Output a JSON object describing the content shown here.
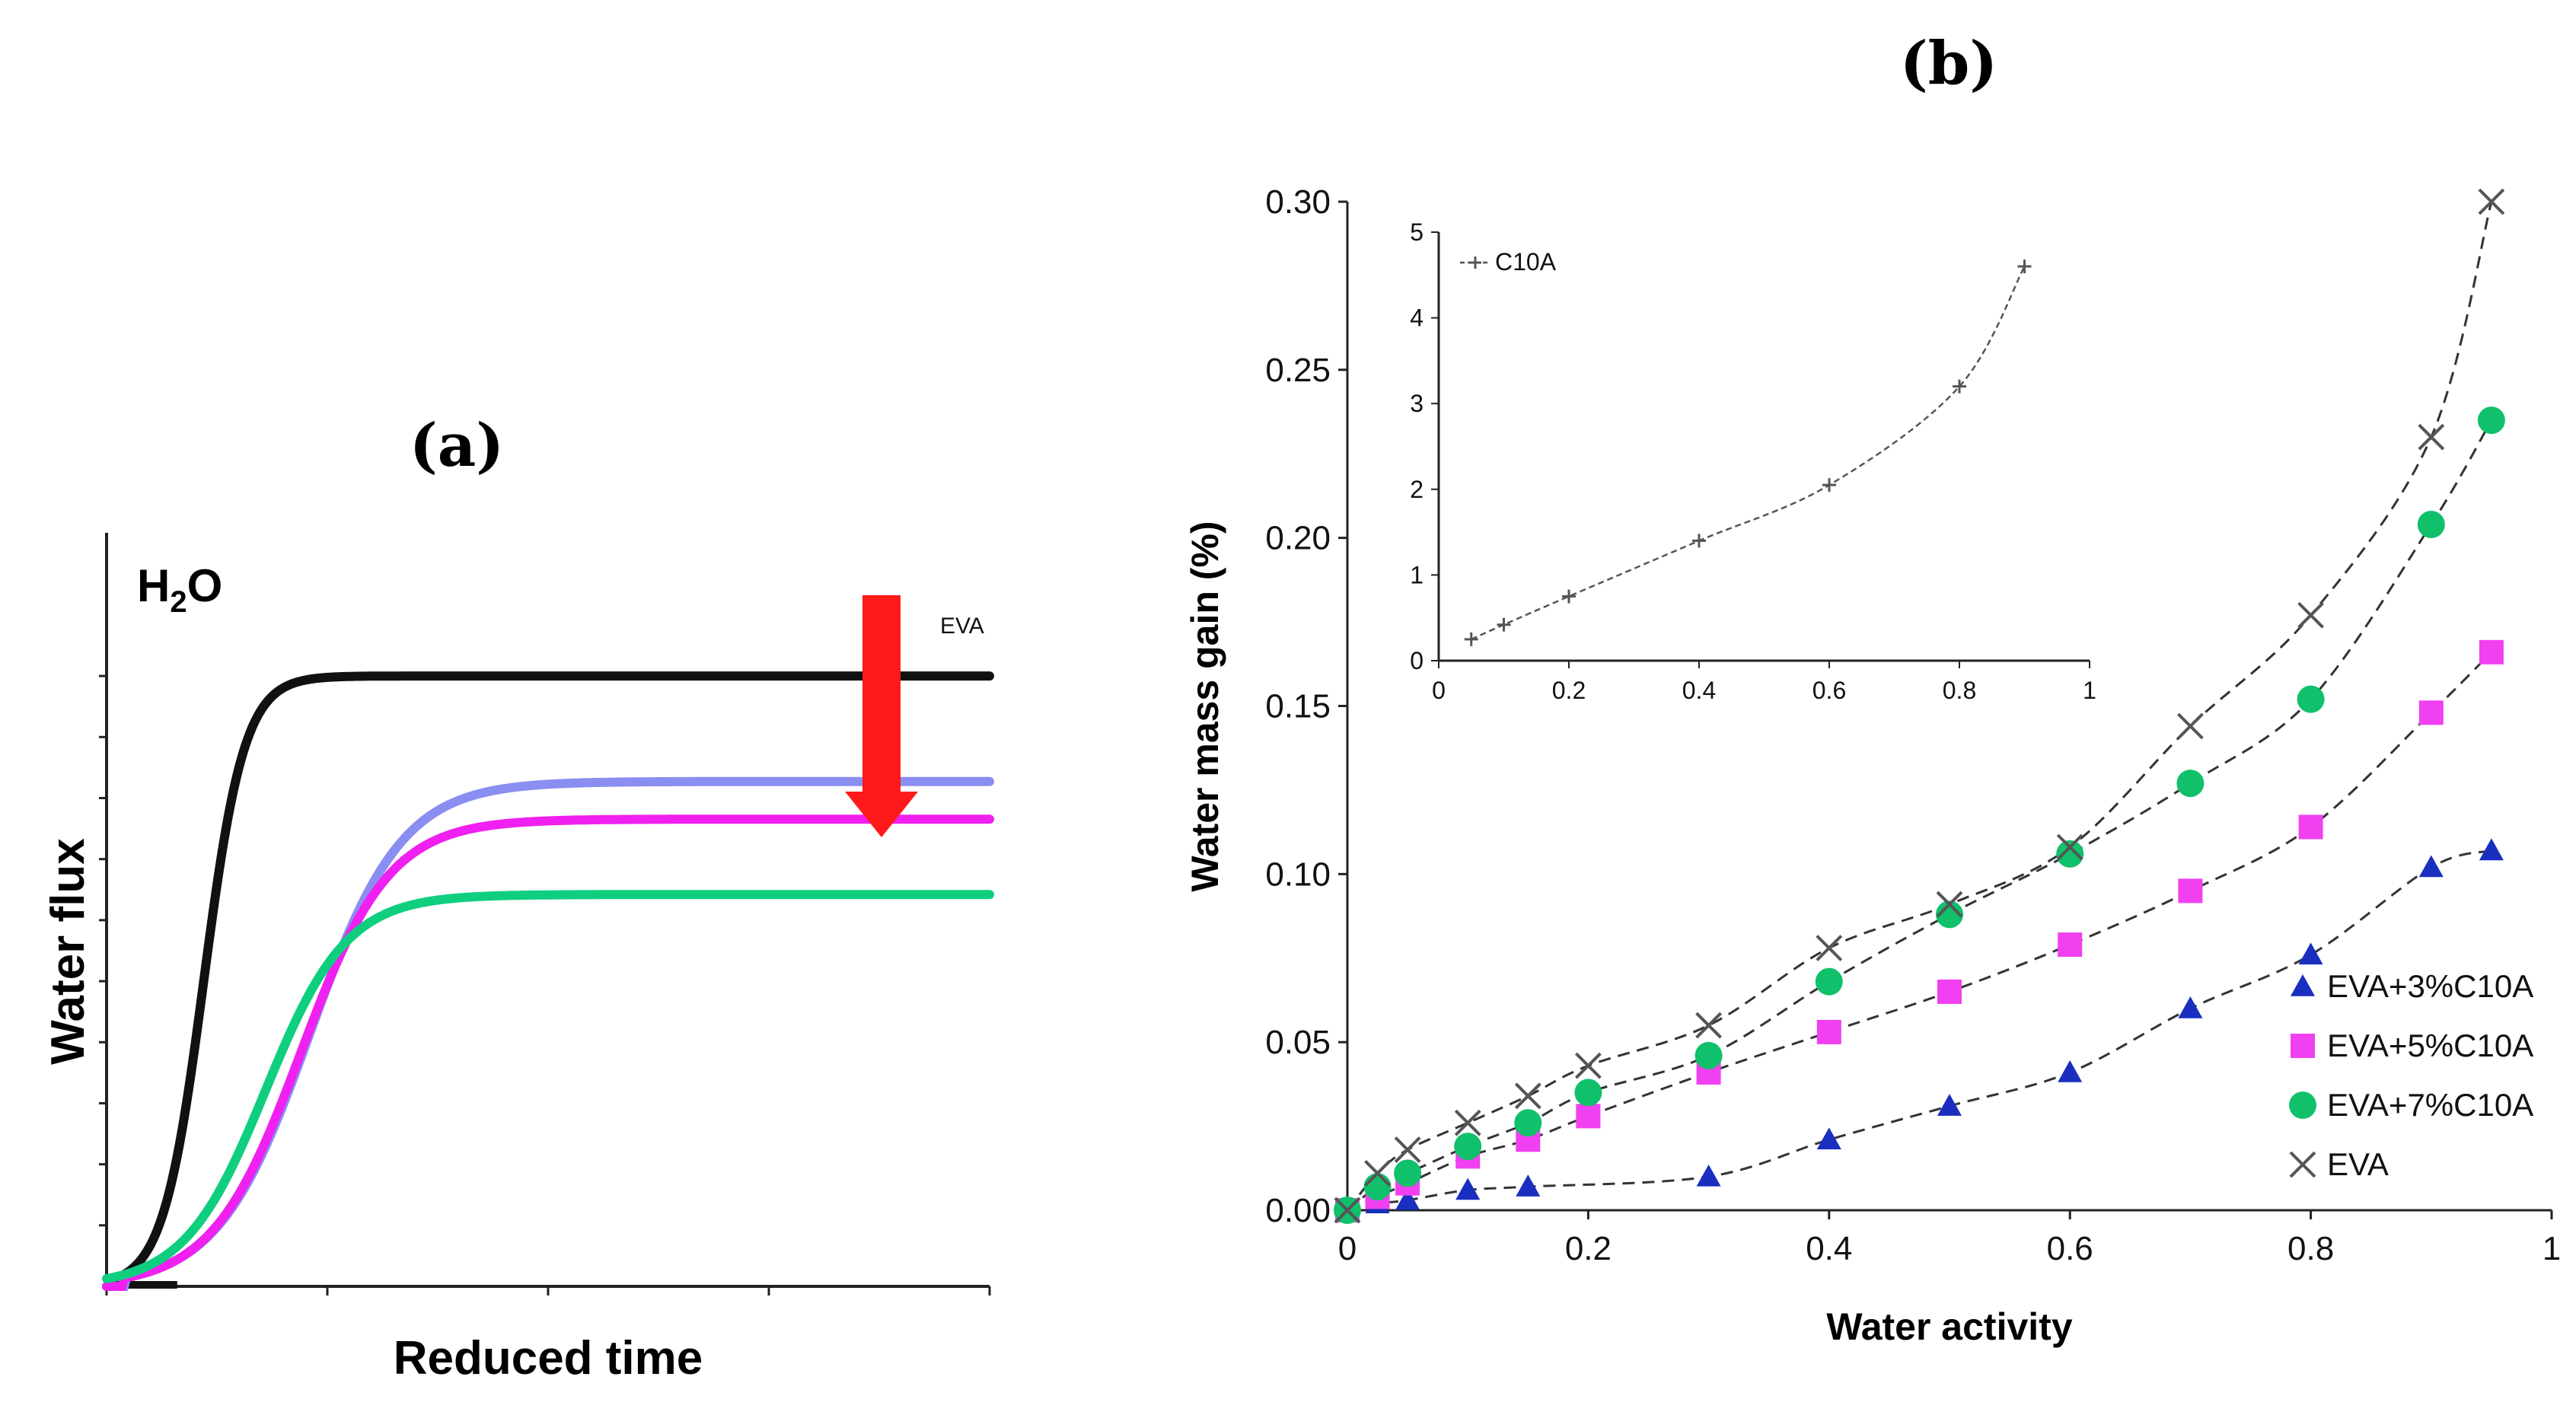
{
  "panel_a": {
    "label": "(a)",
    "h2o_main": "H",
    "h2o_sub": "2",
    "h2o_tail": "O",
    "eva_label": "EVA",
    "xlabel": "Reduced time",
    "ylabel": "Water flux",
    "arrow_color": "#ff1a1a"
  },
  "panel_b": {
    "label": "(b)"
  },
  "chart_data": [
    {
      "type": "line",
      "title": "(a)",
      "xlabel": "Reduced time",
      "ylabel": "Water flux",
      "x_ticks_labeled": false,
      "y_ticks_labeled": false,
      "xlim": [
        0,
        100
      ],
      "ylim": [
        0,
        100
      ],
      "annotations": [
        "H2O",
        "EVA"
      ],
      "series": [
        {
          "name": "H2O",
          "color": "#111111",
          "t0": 11,
          "rise": 2.3,
          "plateau": 81
        },
        {
          "name": "blue",
          "color": "#8a8ef0",
          "t0": 23,
          "rise": 5.2,
          "plateau": 67
        },
        {
          "name": "magenta",
          "color": "#f020f0",
          "t0": 22,
          "rise": 5.0,
          "plateau": 62
        },
        {
          "name": "green",
          "color": "#0fcf7f",
          "t0": 18,
          "rise": 4.6,
          "plateau": 52
        }
      ]
    },
    {
      "type": "scatter",
      "title": "(b)",
      "xlabel": "Water activity",
      "ylabel": "Water mass gain (%)",
      "xlim": [
        0,
        1
      ],
      "ylim": [
        0,
        0.3
      ],
      "x_ticks": [
        "0",
        "0.2",
        "0.4",
        "0.6",
        "0.8",
        "1"
      ],
      "y_ticks": [
        "0.00",
        "0.05",
        "0.10",
        "0.15",
        "0.20",
        "0.25",
        "0.30"
      ],
      "legend_position": "bottom-right",
      "x": [
        0,
        0.025,
        0.05,
        0.1,
        0.15,
        0.2,
        0.3,
        0.4,
        0.5,
        0.6,
        0.7,
        0.8,
        0.9,
        0.95
      ],
      "series": [
        {
          "name": "EVA+3%C10A",
          "marker": "triangle",
          "color": "#1a2fbf",
          "values": [
            0,
            0.002,
            0.003,
            0.006,
            0.007,
            null,
            0.01,
            0.021,
            0.031,
            0.041,
            0.06,
            0.076,
            0.102,
            0.107
          ]
        },
        {
          "name": "EVA+5%C10A",
          "marker": "square",
          "color": "#f040f0",
          "values": [
            0,
            0.004,
            0.008,
            0.016,
            0.021,
            0.028,
            0.041,
            0.053,
            0.065,
            0.079,
            0.095,
            0.114,
            0.148,
            0.166
          ]
        },
        {
          "name": "EVA+7%C10A",
          "marker": "circle",
          "color": "#10c06a",
          "values": [
            0,
            0.007,
            0.011,
            0.019,
            0.026,
            0.035,
            0.046,
            0.068,
            0.088,
            0.106,
            0.127,
            0.152,
            0.204,
            0.235
          ]
        },
        {
          "name": "EVA",
          "marker": "x",
          "color": "#555555",
          "values": [
            0,
            0.011,
            0.018,
            0.026,
            0.034,
            0.043,
            0.055,
            0.078,
            0.091,
            0.108,
            0.144,
            0.177,
            0.23,
            0.3
          ]
        }
      ]
    },
    {
      "type": "line",
      "title": "inset",
      "xlim": [
        0,
        1
      ],
      "ylim": [
        0,
        5
      ],
      "x_ticks": [
        "0",
        "0.2",
        "0.4",
        "0.6",
        "0.8",
        "1"
      ],
      "y_ticks": [
        "0",
        "1",
        "2",
        "3",
        "4",
        "5"
      ],
      "legend_position": "top-left",
      "series": [
        {
          "name": "C10A",
          "marker": "plus",
          "color": "#555555",
          "x": [
            0.05,
            0.1,
            0.2,
            0.4,
            0.6,
            0.8,
            0.9
          ],
          "values": [
            0.25,
            0.42,
            0.75,
            1.4,
            2.05,
            3.2,
            4.6
          ]
        }
      ]
    }
  ]
}
